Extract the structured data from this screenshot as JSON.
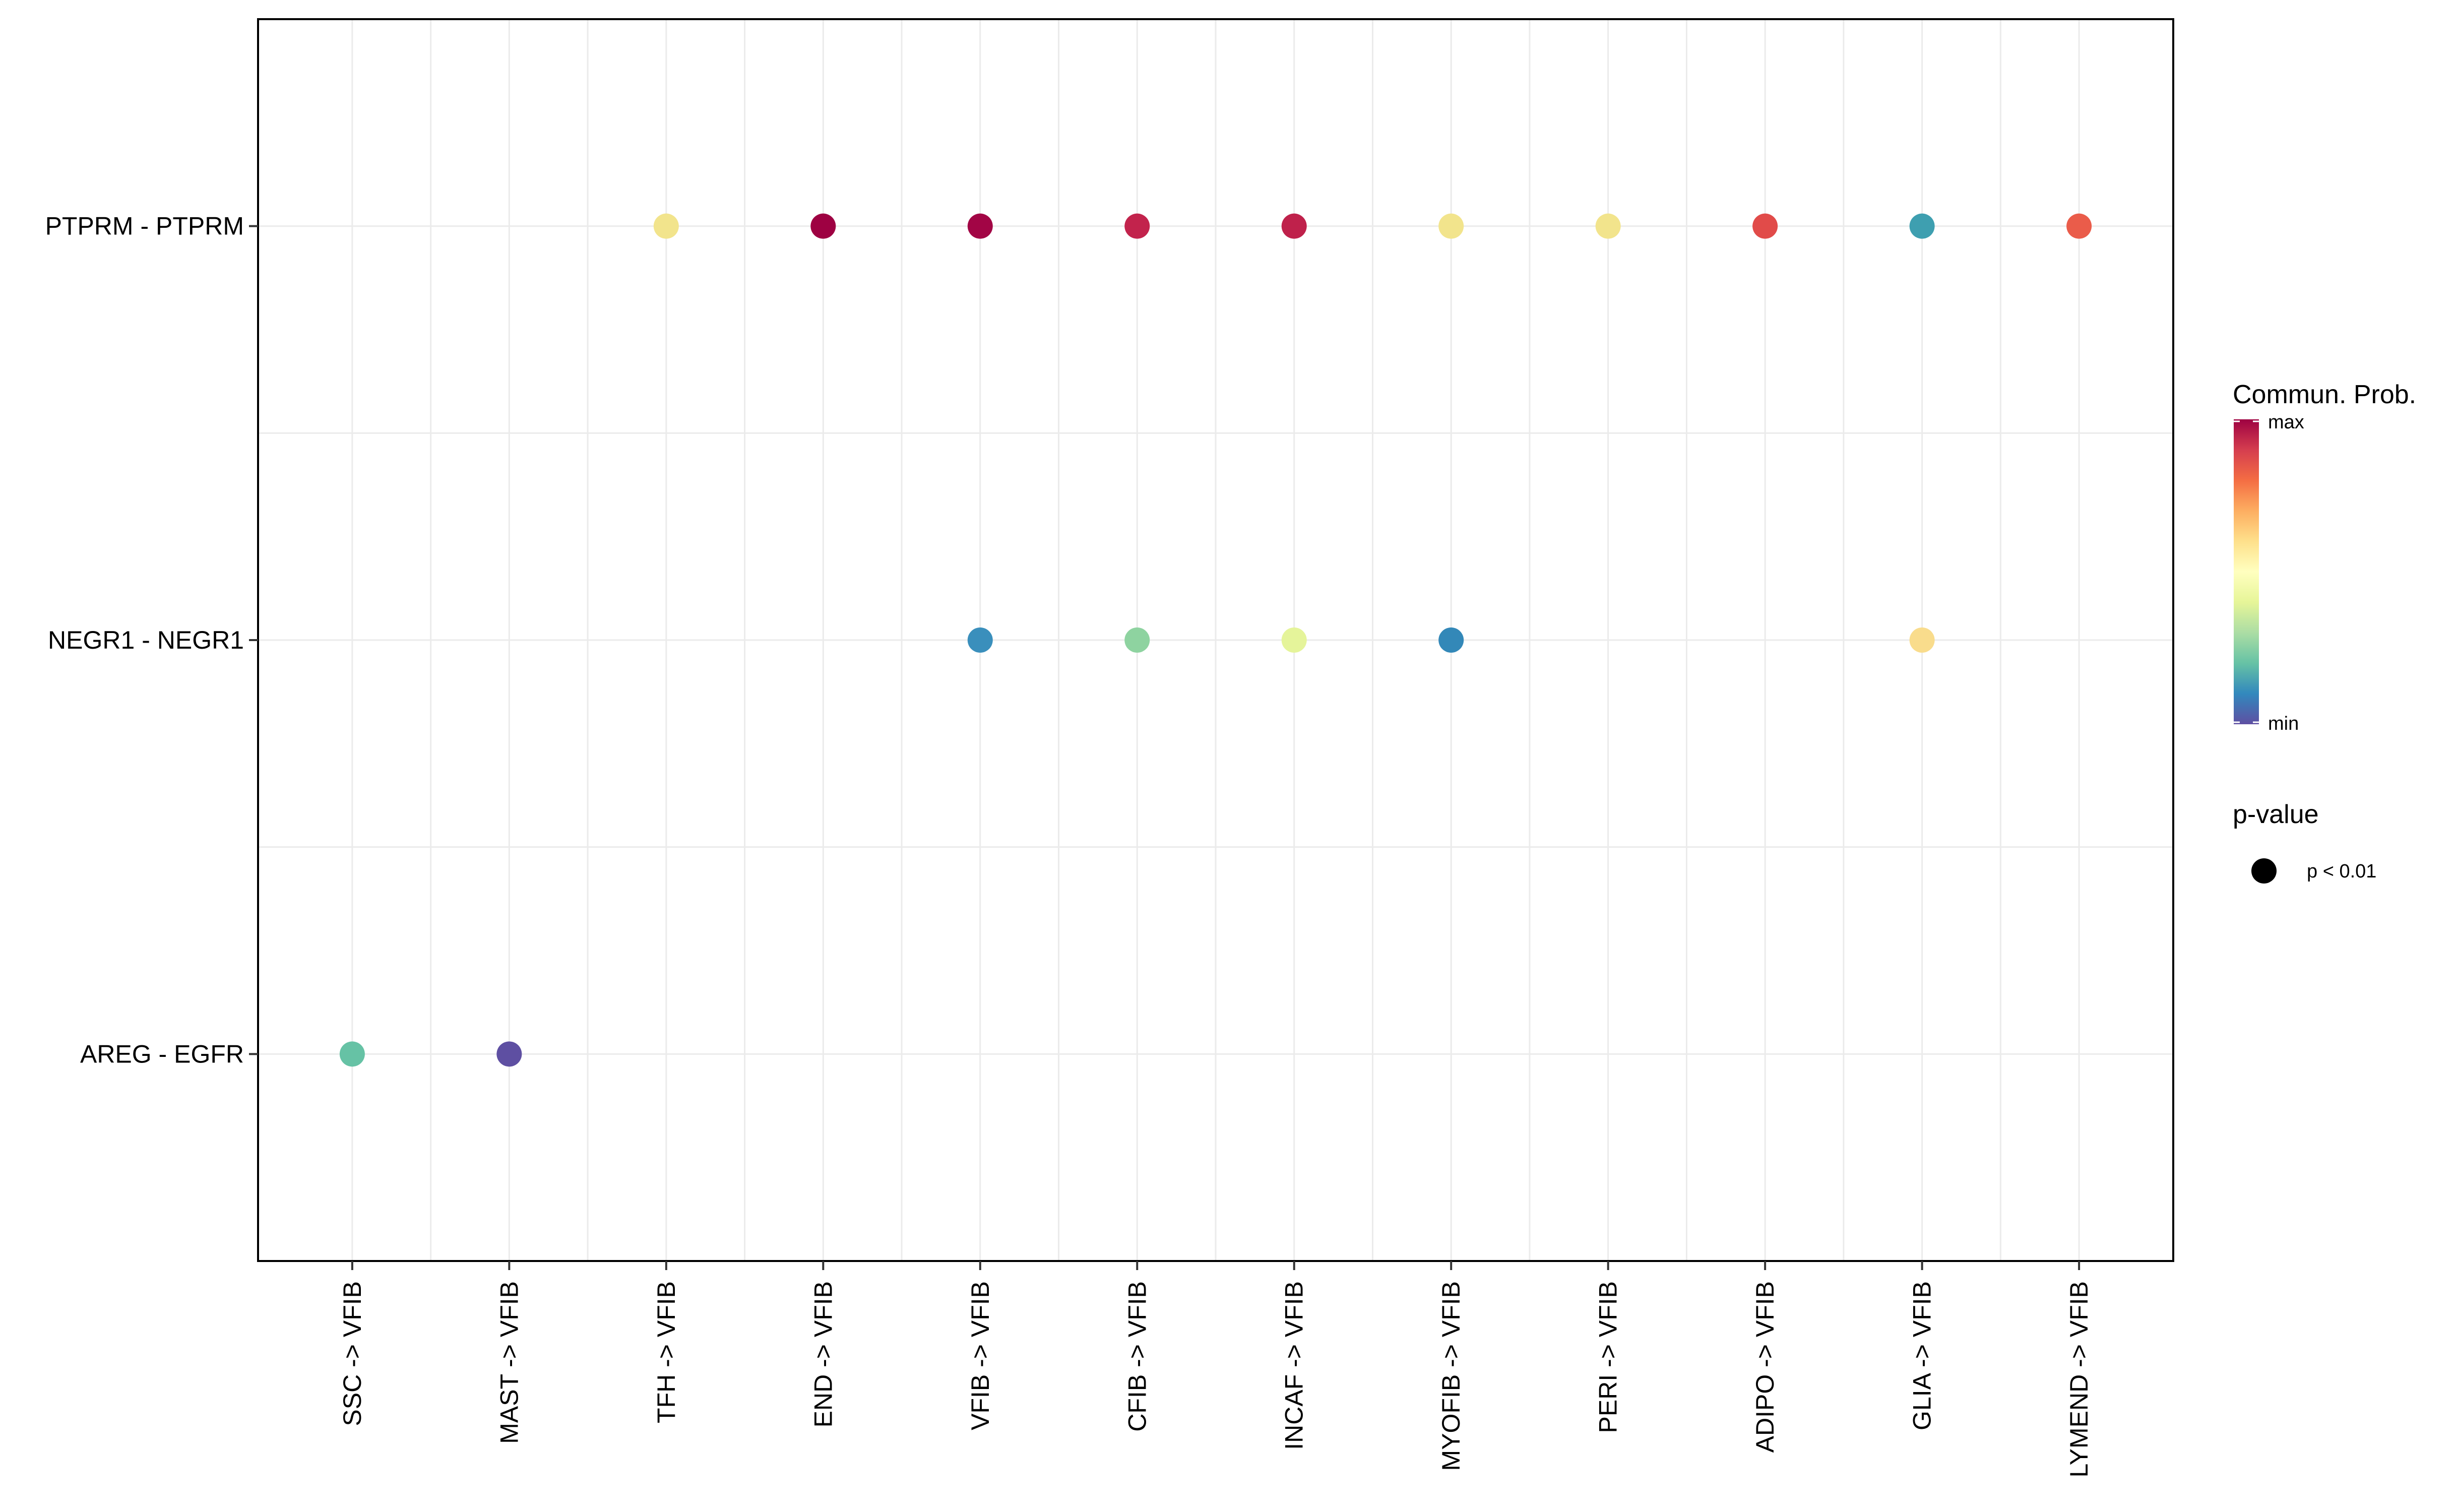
{
  "chart_data": {
    "type": "scatter",
    "subtype": "dot-plot",
    "title": "",
    "xlabel": "",
    "ylabel": "",
    "x_categories": [
      "SSC -> VFIB",
      "MAST -> VFIB",
      "TFH -> VFIB",
      "END -> VFIB",
      "VFIB -> VFIB",
      "CFIB -> VFIB",
      "INCAF -> VFIB",
      "MYOFIB -> VFIB",
      "PERI -> VFIB",
      "ADIPO -> VFIB",
      "GLIA -> VFIB",
      "LYMEND -> VFIB"
    ],
    "y_categories": [
      "AREG - EGFR",
      "NEGR1 - NEGR1",
      "PTPRM - PTPRM"
    ],
    "scale": "relative communication probability (0 = min, 1 = max)",
    "points": [
      {
        "pair": "PTPRM - PTPRM",
        "source": "TFH -> VFIB",
        "prob": 0.55,
        "color": "#F2E48C"
      },
      {
        "pair": "PTPRM - PTPRM",
        "source": "END -> VFIB",
        "prob": 1.0,
        "color": "#9E0142"
      },
      {
        "pair": "PTPRM - PTPRM",
        "source": "VFIB -> VFIB",
        "prob": 0.99,
        "color": "#A20545"
      },
      {
        "pair": "PTPRM - PTPRM",
        "source": "CFIB -> VFIB",
        "prob": 0.92,
        "color": "#C2234C"
      },
      {
        "pair": "PTPRM - PTPRM",
        "source": "INCAF -> VFIB",
        "prob": 0.93,
        "color": "#BF214B"
      },
      {
        "pair": "PTPRM - PTPRM",
        "source": "MYOFIB -> VFIB",
        "prob": 0.55,
        "color": "#F2E48C"
      },
      {
        "pair": "PTPRM - PTPRM",
        "source": "PERI -> VFIB",
        "prob": 0.55,
        "color": "#F2E48C"
      },
      {
        "pair": "PTPRM - PTPRM",
        "source": "ADIPO -> VFIB",
        "prob": 0.84,
        "color": "#E14B49"
      },
      {
        "pair": "PTPRM - PTPRM",
        "source": "GLIA -> VFIB",
        "prob": 0.16,
        "color": "#3E9FB0"
      },
      {
        "pair": "PTPRM - PTPRM",
        "source": "LYMEND -> VFIB",
        "prob": 0.8,
        "color": "#EA5C4A"
      },
      {
        "pair": "NEGR1 - NEGR1",
        "source": "VFIB -> VFIB",
        "prob": 0.13,
        "color": "#3A8FBC"
      },
      {
        "pair": "NEGR1 - NEGR1",
        "source": "CFIB -> VFIB",
        "prob": 0.33,
        "color": "#8ED3A0"
      },
      {
        "pair": "NEGR1 - NEGR1",
        "source": "INCAF -> VFIB",
        "prob": 0.47,
        "color": "#E5F49A"
      },
      {
        "pair": "NEGR1 - NEGR1",
        "source": "MYOFIB -> VFIB",
        "prob": 0.12,
        "color": "#3388B8"
      },
      {
        "pair": "NEGR1 - NEGR1",
        "source": "GLIA -> VFIB",
        "prob": 0.58,
        "color": "#F9DC8C"
      },
      {
        "pair": "AREG - EGFR",
        "source": "SSC -> VFIB",
        "prob": 0.26,
        "color": "#66C2A5"
      },
      {
        "pair": "AREG - EGFR",
        "source": "MAST -> VFIB",
        "prob": 0.0,
        "color": "#5E4FA2"
      }
    ],
    "legend": {
      "color_title": "Commun. Prob.",
      "color_max_label": "max",
      "color_min_label": "min",
      "color_stops": [
        "#5E4FA2",
        "#3288BD",
        "#66C2A5",
        "#ABDDA4",
        "#E6F598",
        "#FFFFBF",
        "#FEE08B",
        "#FDAE61",
        "#F46D43",
        "#D53E4F",
        "#9E0142"
      ],
      "size_title": "p-value",
      "size_label": "p < 0.01",
      "position": "right"
    },
    "grid": true
  }
}
